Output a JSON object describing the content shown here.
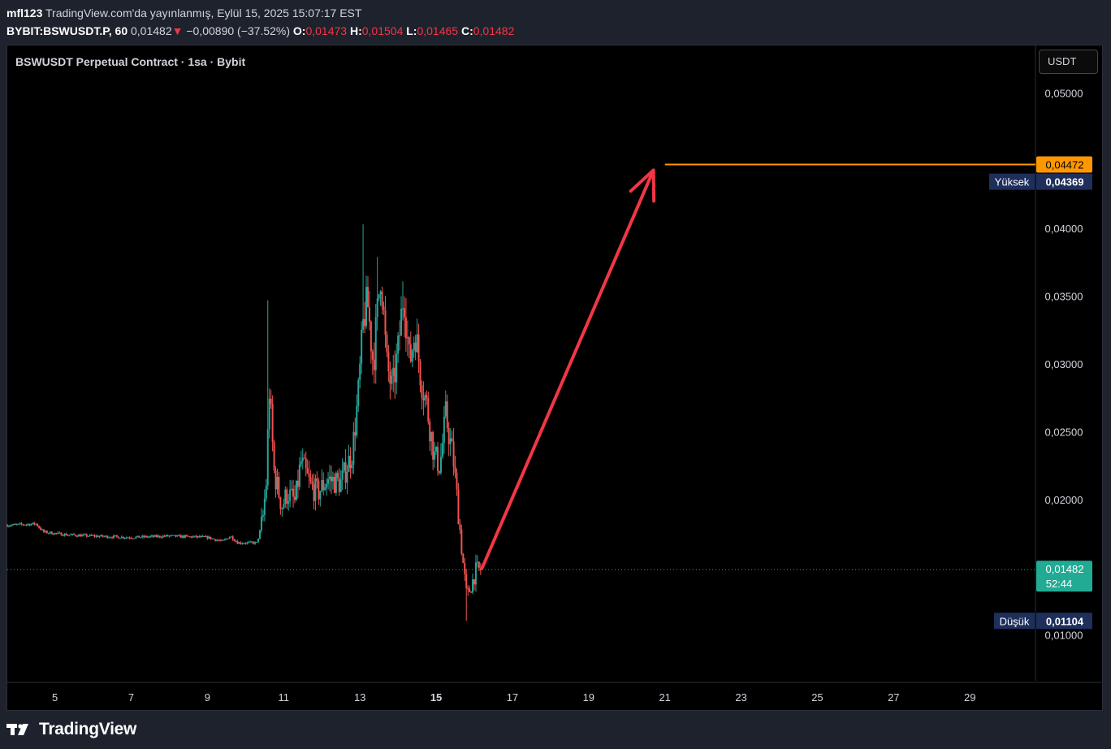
{
  "header": {
    "author": "mfl123",
    "published": "TradingView.com'da yayınlanmış, Eylül 15, 2025 15:07:17 EST",
    "symbol": "BYBIT:BSWUSDT.P, 60",
    "last": "0,01482",
    "change_arrow": "▼",
    "change": "−0,00890 (−37.52%)",
    "ohlc": [
      {
        "k": "O:",
        "v": "0,01473"
      },
      {
        "k": "H:",
        "v": "0,01504"
      },
      {
        "k": "L:",
        "v": "0,01465"
      },
      {
        "k": "C:",
        "v": "0,01482"
      }
    ]
  },
  "chart_title": "BSWUSDT Perpetual Contract · 1sa · Bybit",
  "currency_button": "USDT",
  "brand": "TradingView",
  "colors": {
    "up": "#26a69a",
    "down": "#ef5350",
    "orange": "#ff9800",
    "arrow": "#f23645",
    "label_bg": "#1e2f5c",
    "last_bg": "#22ab94",
    "background": "#000000"
  },
  "chart_data": {
    "type": "candlestick",
    "interval": "1 hour",
    "ylim": [
      0.0065,
      0.0535
    ],
    "y_ticks": [
      {
        "v": 0.05,
        "label": "0,05000"
      },
      {
        "v": 0.04,
        "label": "0,04000"
      },
      {
        "v": 0.035,
        "label": "0,03500"
      },
      {
        "v": 0.03,
        "label": "0,03000"
      },
      {
        "v": 0.025,
        "label": "0,02500"
      },
      {
        "v": 0.02,
        "label": "0,02000"
      },
      {
        "v": 0.01,
        "label": "0,01000"
      }
    ],
    "xlim": [
      3.75,
      30.7
    ],
    "x_ticks": [
      {
        "d": 5,
        "label": "5",
        "bold": false
      },
      {
        "d": 7,
        "label": "7",
        "bold": false
      },
      {
        "d": 9,
        "label": "9",
        "bold": false
      },
      {
        "d": 11,
        "label": "11",
        "bold": false
      },
      {
        "d": 13,
        "label": "13",
        "bold": false
      },
      {
        "d": 15,
        "label": "15",
        "bold": true
      },
      {
        "d": 17,
        "label": "17",
        "bold": false
      },
      {
        "d": 19,
        "label": "19",
        "bold": false
      },
      {
        "d": 21,
        "label": "21",
        "bold": false
      },
      {
        "d": 23,
        "label": "23",
        "bold": false
      },
      {
        "d": 25,
        "label": "25",
        "bold": false
      },
      {
        "d": 27,
        "label": "27",
        "bold": false
      },
      {
        "d": 29,
        "label": "29",
        "bold": false
      }
    ],
    "price_waypoints": [
      [
        3.75,
        0.0181
      ],
      [
        4.5,
        0.0182
      ],
      [
        4.7,
        0.0176
      ],
      [
        5.3,
        0.0174
      ],
      [
        6.0,
        0.0173
      ],
      [
        7.0,
        0.0172
      ],
      [
        8.0,
        0.0173
      ],
      [
        9.0,
        0.0172
      ],
      [
        9.4,
        0.0169
      ],
      [
        9.6,
        0.0173
      ],
      [
        9.8,
        0.0168
      ],
      [
        10.3,
        0.0168
      ],
      [
        10.45,
        0.0185
      ],
      [
        10.55,
        0.0215
      ],
      [
        10.62,
        0.0283
      ],
      [
        10.75,
        0.022
      ],
      [
        10.95,
        0.0195
      ],
      [
        11.1,
        0.0205
      ],
      [
        11.3,
        0.0198
      ],
      [
        11.45,
        0.0228
      ],
      [
        11.7,
        0.021
      ],
      [
        11.9,
        0.0205
      ],
      [
        12.15,
        0.0215
      ],
      [
        12.5,
        0.0212
      ],
      [
        12.8,
        0.0235
      ],
      [
        12.95,
        0.0275
      ],
      [
        13.1,
        0.0335
      ],
      [
        13.2,
        0.0345
      ],
      [
        13.35,
        0.03
      ],
      [
        13.55,
        0.037
      ],
      [
        13.7,
        0.03
      ],
      [
        13.85,
        0.028
      ],
      [
        14.0,
        0.031
      ],
      [
        14.15,
        0.0355
      ],
      [
        14.3,
        0.03
      ],
      [
        14.45,
        0.0325
      ],
      [
        14.6,
        0.029
      ],
      [
        14.75,
        0.027
      ],
      [
        14.95,
        0.0232
      ],
      [
        15.1,
        0.0225
      ],
      [
        15.25,
        0.0262
      ],
      [
        15.45,
        0.023
      ],
      [
        15.6,
        0.0185
      ],
      [
        15.7,
        0.0155
      ],
      [
        15.8,
        0.0128
      ],
      [
        15.9,
        0.0135
      ],
      [
        16.05,
        0.0148
      ],
      [
        16.2,
        0.0148
      ]
    ],
    "spikes": [
      {
        "x": 10.6,
        "high": 0.0347
      },
      {
        "x": 13.09,
        "high": 0.0437
      },
      {
        "x": 13.07,
        "high": 0.0403
      },
      {
        "x": 13.45,
        "high": 0.0379
      },
      {
        "x": 14.12,
        "high": 0.0361
      },
      {
        "x": 15.78,
        "low": 0.01104
      }
    ],
    "last_price": {
      "value": 0.01482,
      "label": "0,01482",
      "countdown": "52:44"
    },
    "target": {
      "value": 0.04472,
      "label": "0,04472",
      "from": 21.0
    },
    "high_marker": {
      "text": "Yüksek",
      "label": "0,04369",
      "value": 0.04369
    },
    "low_marker": {
      "text": "Düşük",
      "label": "0,01104",
      "value": 0.01104
    },
    "arrow": {
      "from": [
        16.2,
        0.0149
      ],
      "to": [
        20.7,
        0.0443
      ]
    }
  }
}
